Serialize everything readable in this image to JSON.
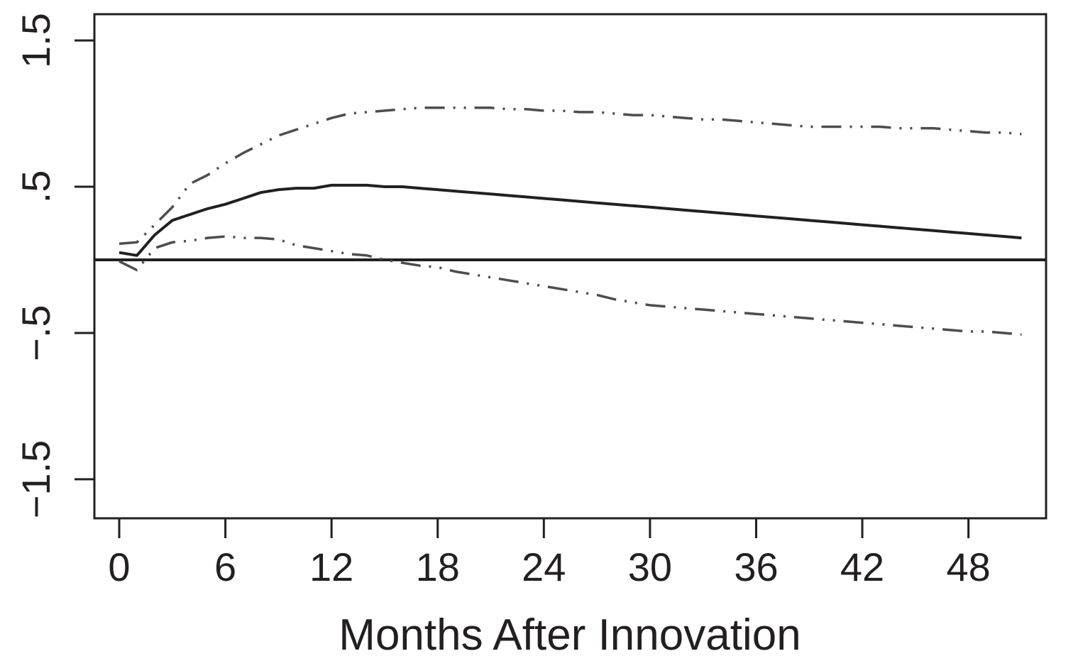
{
  "chart_data": {
    "type": "line",
    "xlabel": "Months After Innovation",
    "ylabel": "",
    "xlim": [
      -1.5,
      52.5
    ],
    "ylim": [
      -1.75,
      1.7
    ],
    "x_ticks": [
      0,
      6,
      12,
      18,
      24,
      30,
      36,
      42,
      48
    ],
    "x_tick_labels": [
      "0",
      "6",
      "12",
      "18",
      "24",
      "30",
      "36",
      "42",
      "48"
    ],
    "y_ticks": [
      1.5,
      0.5,
      -0.5,
      -1.5
    ],
    "y_tick_labels": [
      "1.5",
      ".5",
      "-.5",
      "-1.5"
    ],
    "reference_line": 0,
    "grid": false,
    "x": [
      0,
      1,
      2,
      3,
      4,
      5,
      6,
      7,
      8,
      9,
      10,
      11,
      12,
      13,
      14,
      15,
      16,
      17,
      18,
      19,
      20,
      21,
      22,
      23,
      24,
      25,
      26,
      27,
      28,
      29,
      30,
      31,
      32,
      33,
      34,
      35,
      36,
      37,
      38,
      39,
      40,
      41,
      42,
      43,
      44,
      45,
      46,
      47,
      48,
      49,
      50,
      51
    ],
    "series": [
      {
        "style": "solid",
        "color": "#231f20",
        "values": [
          0.05,
          0.03,
          0.17,
          0.27,
          0.31,
          0.35,
          0.38,
          0.42,
          0.46,
          0.48,
          0.49,
          0.49,
          0.51,
          0.51,
          0.51,
          0.5,
          0.5,
          0.49,
          0.48,
          0.47,
          0.46,
          0.45,
          0.44,
          0.43,
          0.42,
          0.41,
          0.4,
          0.39,
          0.38,
          0.37,
          0.36,
          0.35,
          0.34,
          0.33,
          0.32,
          0.31,
          0.3,
          0.29,
          0.28,
          0.27,
          0.26,
          0.25,
          0.24,
          0.23,
          0.22,
          0.21,
          0.2,
          0.19,
          0.18,
          0.17,
          0.16,
          0.15
        ]
      },
      {
        "style": "dashdot",
        "color": "#4d4d4f",
        "values": [
          0.11,
          0.12,
          0.24,
          0.36,
          0.52,
          0.58,
          0.66,
          0.73,
          0.79,
          0.85,
          0.89,
          0.93,
          0.97,
          1.0,
          1.01,
          1.02,
          1.03,
          1.04,
          1.04,
          1.04,
          1.04,
          1.04,
          1.03,
          1.03,
          1.02,
          1.02,
          1.01,
          1.01,
          1.0,
          0.99,
          0.99,
          0.98,
          0.97,
          0.96,
          0.96,
          0.95,
          0.94,
          0.93,
          0.92,
          0.91,
          0.91,
          0.91,
          0.91,
          0.91,
          0.9,
          0.9,
          0.9,
          0.89,
          0.88,
          0.87,
          0.87,
          0.86
        ]
      },
      {
        "style": "dashdot",
        "color": "#4d4d4f",
        "values": [
          -0.01,
          -0.07,
          0.08,
          0.12,
          0.13,
          0.15,
          0.16,
          0.15,
          0.15,
          0.14,
          0.1,
          0.08,
          0.06,
          0.04,
          0.03,
          0.0,
          -0.02,
          -0.04,
          -0.05,
          -0.08,
          -0.1,
          -0.12,
          -0.14,
          -0.16,
          -0.18,
          -0.2,
          -0.22,
          -0.24,
          -0.27,
          -0.29,
          -0.31,
          -0.32,
          -0.33,
          -0.34,
          -0.35,
          -0.36,
          -0.37,
          -0.38,
          -0.39,
          -0.4,
          -0.41,
          -0.42,
          -0.43,
          -0.44,
          -0.45,
          -0.46,
          -0.47,
          -0.48,
          -0.49,
          -0.49,
          -0.5,
          -0.51
        ]
      }
    ]
  }
}
